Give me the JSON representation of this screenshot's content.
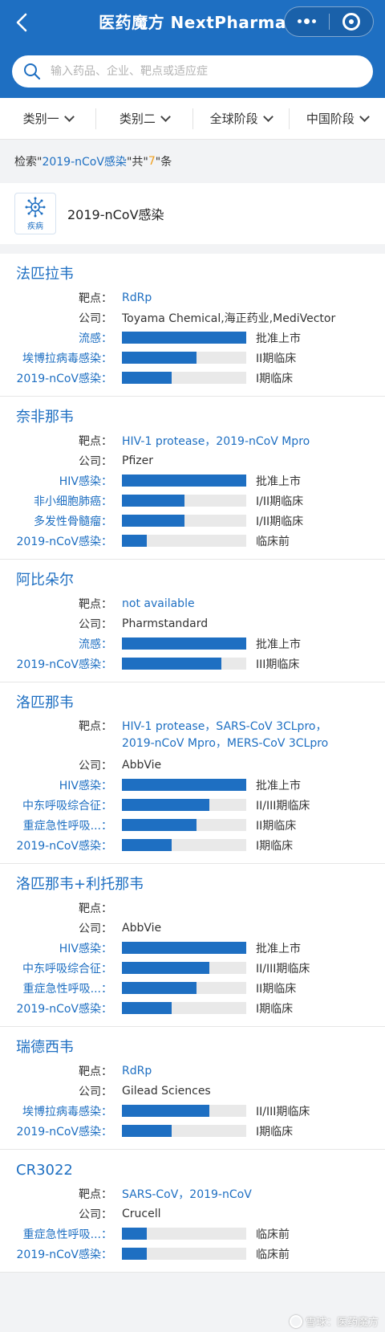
{
  "header": {
    "title": "医药魔方 NextPharma",
    "search_placeholder": "输入药品、企业、靶点或适应症"
  },
  "filters": [
    "类别一",
    "类别二",
    "全球阶段",
    "中国阶段"
  ],
  "result": {
    "prefix": "检索\" ",
    "keyword": "2019-nCoV感染",
    "middle": "\"共\" ",
    "count": "7",
    "suffix": "\"条"
  },
  "disease": {
    "icon_label": "疾病",
    "title": "2019-nCoV感染"
  },
  "labels": {
    "target": "靶点：",
    "company": "公司："
  },
  "colors": {
    "brand": "#1e6fc2",
    "bar_track": "#e9e9e9",
    "count_highlight": "#f0a020"
  },
  "drugs": [
    {
      "name": "法匹拉韦",
      "target": "RdRp",
      "company": "Toyama Chemical,海正药业,MediVector",
      "indications": [
        {
          "name": "流感：",
          "phase": "批准上市",
          "progress": 1.0
        },
        {
          "name": "埃博拉病毒感染：",
          "phase": "II期临床",
          "progress": 0.6
        },
        {
          "name": "2019-nCoV感染：",
          "phase": "I期临床",
          "progress": 0.4
        }
      ]
    },
    {
      "name": "奈非那韦",
      "target": "HIV-1 protease，2019-nCoV Mpro",
      "company": "Pfizer",
      "indications": [
        {
          "name": "HIV感染：",
          "phase": "批准上市",
          "progress": 1.0
        },
        {
          "name": "非小细胞肺癌：",
          "phase": "I/II期临床",
          "progress": 0.5
        },
        {
          "name": "多发性骨髓瘤：",
          "phase": "I/II期临床",
          "progress": 0.5
        },
        {
          "name": "2019-nCoV感染：",
          "phase": "临床前",
          "progress": 0.2
        }
      ]
    },
    {
      "name": "阿比朵尔",
      "target": "not available",
      "company": "Pharmstandard",
      "indications": [
        {
          "name": "流感：",
          "phase": "批准上市",
          "progress": 1.0
        },
        {
          "name": "2019-nCoV感染：",
          "phase": "III期临床",
          "progress": 0.8
        }
      ]
    },
    {
      "name": "洛匹那韦",
      "target": "HIV-1 protease，SARS-CoV 3CLpro，2019-nCoV Mpro，MERS-CoV 3CLpro",
      "company": "AbbVie",
      "indications": [
        {
          "name": "HIV感染：",
          "phase": "批准上市",
          "progress": 1.0
        },
        {
          "name": "中东呼吸综合征：",
          "phase": "II/III期临床",
          "progress": 0.7
        },
        {
          "name": "重症急性呼吸...：",
          "phase": "II期临床",
          "progress": 0.6
        },
        {
          "name": "2019-nCoV感染：",
          "phase": "I期临床",
          "progress": 0.4
        }
      ]
    },
    {
      "name": "洛匹那韦+利托那韦",
      "target": "",
      "company": "AbbVie",
      "indications": [
        {
          "name": "HIV感染：",
          "phase": "批准上市",
          "progress": 1.0
        },
        {
          "name": "中东呼吸综合征：",
          "phase": "II/III期临床",
          "progress": 0.7
        },
        {
          "name": "重症急性呼吸...：",
          "phase": "II期临床",
          "progress": 0.6
        },
        {
          "name": "2019-nCoV感染：",
          "phase": "I期临床",
          "progress": 0.4
        }
      ]
    },
    {
      "name": "瑞德西韦",
      "target": "RdRp",
      "company": "Gilead Sciences",
      "indications": [
        {
          "name": "埃博拉病毒感染：",
          "phase": "II/III期临床",
          "progress": 0.7
        },
        {
          "name": "2019-nCoV感染：",
          "phase": "I期临床",
          "progress": 0.4
        }
      ]
    },
    {
      "name": "CR3022",
      "target": "SARS-CoV，2019-nCoV",
      "company": "Crucell",
      "indications": [
        {
          "name": "重症急性呼吸...：",
          "phase": "临床前",
          "progress": 0.2
        },
        {
          "name": "2019-nCoV感染：",
          "phase": "临床前",
          "progress": 0.2
        }
      ]
    }
  ],
  "watermark": "雪球：医药魔方"
}
